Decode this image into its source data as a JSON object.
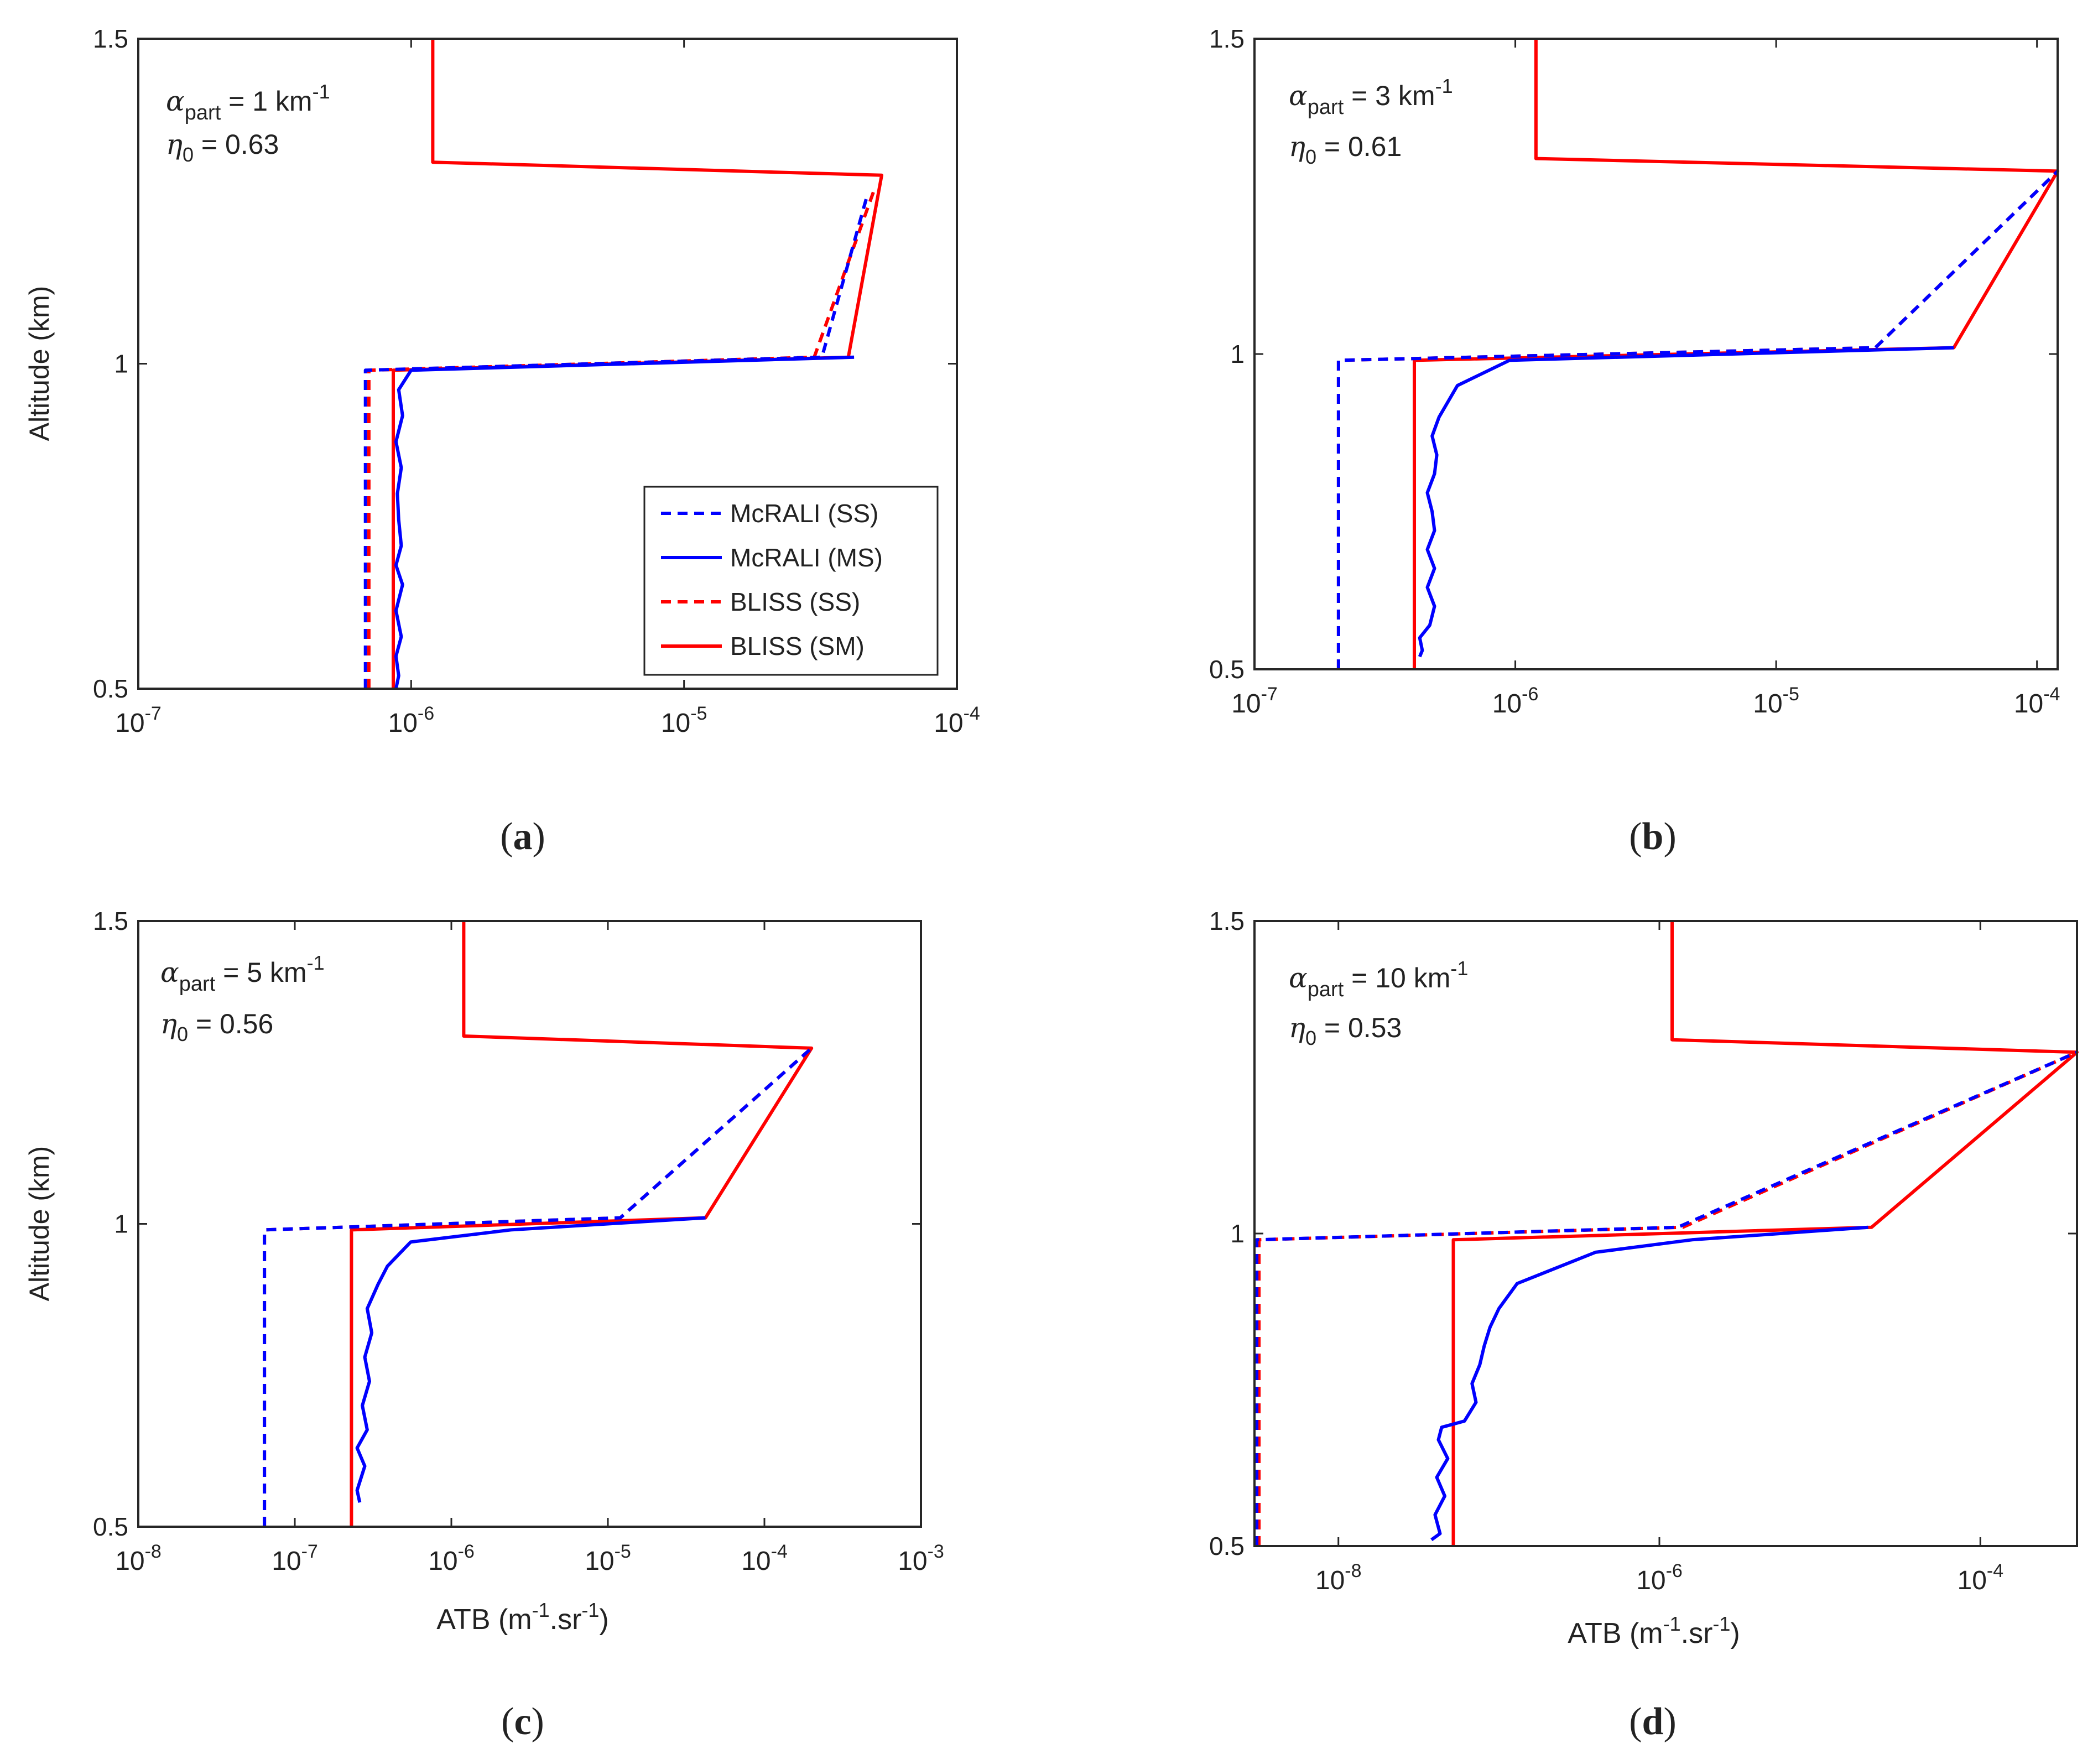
{
  "colors": {
    "mcrali": "#0000ff",
    "bliss": "#ff0000",
    "axis": "#262626"
  },
  "legend": {
    "entries": [
      {
        "label": "McRALI (SS)",
        "style": "dashed",
        "color": "#0000ff"
      },
      {
        "label": "McRALI (MS)",
        "style": "solid",
        "color": "#0000ff"
      },
      {
        "label": "BLISS (SS)",
        "style": "dashed",
        "color": "#ff0000"
      },
      {
        "label": "BLISS (SM)",
        "style": "solid",
        "color": "#ff0000"
      }
    ]
  },
  "chart_data": [
    {
      "id": "a",
      "type": "line",
      "panel_label": "a",
      "ylabel": "Altitude (km)",
      "xlabel": "",
      "xscale": "log",
      "xlim": [
        1e-07,
        0.0001
      ],
      "ylim": [
        0.5,
        1.5
      ],
      "x_ticks": [
        1e-07,
        1e-06,
        1e-05,
        0.0001
      ],
      "x_tick_mant": [
        "10",
        "10",
        "10",
        "10"
      ],
      "x_tick_exp": [
        "-7",
        "-6",
        "-5",
        "-4"
      ],
      "y_ticks": [
        0.5,
        1,
        1.5
      ],
      "y_tick_labels": [
        "0.5",
        "1",
        "1.5"
      ],
      "annotation": {
        "alpha_value": " = 1 km",
        "alpha_exp": "-1",
        "eta_value": " = 0.63"
      },
      "series": [
        {
          "name": "McRALI (SS)",
          "dashed": true,
          "color": "#0000ff",
          "x": [
            6.8e-07,
            6.8e-07,
            3.2e-05,
            4.7e-05
          ],
          "y": [
            0.5,
            0.99,
            1.01,
            1.26
          ]
        },
        {
          "name": "McRALI (MS)",
          "dashed": false,
          "color": "#0000ff",
          "x": [
            8.8e-07,
            9e-07,
            8.8e-07,
            9.2e-07,
            8.8e-07,
            9.3e-07,
            8.8e-07,
            9.2e-07,
            9e-07,
            8.9e-07,
            9.2e-07,
            8.8e-07,
            9.3e-07,
            9e-07,
            1e-06,
            4.2e-05
          ],
          "y": [
            0.5,
            0.52,
            0.55,
            0.58,
            0.62,
            0.66,
            0.69,
            0.72,
            0.76,
            0.8,
            0.84,
            0.88,
            0.92,
            0.96,
            0.99,
            1.01
          ]
        },
        {
          "name": "BLISS (SS)",
          "dashed": true,
          "color": "#ff0000",
          "x": [
            7e-07,
            7e-07,
            3e-05,
            5e-05
          ],
          "y": [
            0.5,
            0.99,
            1.01,
            1.27
          ]
        },
        {
          "name": "BLISS (SM)",
          "dashed": false,
          "color": "#ff0000",
          "x": [
            8.6e-07,
            8.6e-07,
            4e-05,
            5.3e-05,
            1.2e-06,
            1.2e-06
          ],
          "y": [
            0.5,
            0.99,
            1.01,
            1.29,
            1.31,
            1.5
          ]
        }
      ]
    },
    {
      "id": "b",
      "type": "line",
      "panel_label": "b",
      "ylabel": "",
      "xlabel": "",
      "xscale": "log",
      "xlim": [
        1e-07,
        0.00012
      ],
      "ylim": [
        0.5,
        1.5
      ],
      "x_ticks": [
        1e-07,
        1e-06,
        1e-05,
        0.0001
      ],
      "x_tick_mant": [
        "10",
        "10",
        "10",
        "10"
      ],
      "x_tick_exp": [
        "-7",
        "-6",
        "-5",
        "-4"
      ],
      "y_ticks": [
        0.5,
        1,
        1.5
      ],
      "y_tick_labels": [
        "0.5",
        "1",
        "1.5"
      ],
      "annotation": {
        "alpha_value": " = 3 km",
        "alpha_exp": "-1",
        "eta_value": " = 0.61"
      },
      "series": [
        {
          "name": "McRALI (SS)",
          "dashed": true,
          "color": "#0000ff",
          "x": [
            2.1e-07,
            2.1e-07,
            2.4e-05,
            0.00012
          ],
          "y": [
            0.5,
            0.99,
            1.01,
            1.29
          ]
        },
        {
          "name": "McRALI (MS)",
          "dashed": false,
          "color": "#0000ff",
          "x": [
            4.3e-07,
            4.4e-07,
            4.3e-07,
            4.7e-07,
            4.9e-07,
            4.6e-07,
            4.9e-07,
            4.6e-07,
            4.9e-07,
            4.8e-07,
            4.6e-07,
            4.9e-07,
            5e-07,
            4.8e-07,
            5.1e-07,
            6e-07,
            9.5e-07,
            4.8e-05
          ],
          "y": [
            0.52,
            0.53,
            0.55,
            0.57,
            0.6,
            0.63,
            0.66,
            0.69,
            0.72,
            0.75,
            0.78,
            0.81,
            0.84,
            0.87,
            0.9,
            0.95,
            0.99,
            1.01
          ]
        },
        {
          "name": "BLISS (SS)",
          "dashed": true,
          "color": "#ff0000",
          "x": [
            2.1e-07,
            2.1e-07,
            2.4e-05,
            0.00012
          ],
          "y": [
            0.5,
            0.99,
            1.01,
            1.29
          ]
        },
        {
          "name": "BLISS (SM)",
          "dashed": false,
          "color": "#ff0000",
          "x": [
            4.1e-07,
            4.1e-07,
            4.8e-05,
            0.00012,
            1.2e-06,
            1.2e-06
          ],
          "y": [
            0.5,
            0.99,
            1.01,
            1.29,
            1.31,
            1.5
          ]
        }
      ]
    },
    {
      "id": "c",
      "type": "line",
      "panel_label": "c",
      "ylabel": "Altitude (km)",
      "xlabel": "ATB (m-1.sr-1)",
      "xlabel_parts": [
        "ATB (m",
        "-1",
        ".sr",
        "-1",
        ")"
      ],
      "xscale": "log",
      "xlim": [
        1e-08,
        0.001
      ],
      "ylim": [
        0.5,
        1.5
      ],
      "x_ticks": [
        1e-08,
        1e-07,
        1e-06,
        1e-05,
        0.0001,
        0.001
      ],
      "x_tick_mant": [
        "10",
        "10",
        "10",
        "10",
        "10",
        "10"
      ],
      "x_tick_exp": [
        "-8",
        "-7",
        "-6",
        "-5",
        "-4",
        "-3"
      ],
      "y_ticks": [
        0.5,
        1,
        1.5
      ],
      "y_tick_labels": [
        "0.5",
        "1",
        "1.5"
      ],
      "annotation": {
        "alpha_value": " = 5 km",
        "alpha_exp": "-1",
        "eta_value": " = 0.56"
      },
      "series": [
        {
          "name": "McRALI (SS)",
          "dashed": true,
          "color": "#0000ff",
          "x": [
            6.4e-08,
            6.4e-08,
            1.2e-05,
            0.0002
          ],
          "y": [
            0.5,
            0.99,
            1.01,
            1.29
          ]
        },
        {
          "name": "McRALI (MS)",
          "dashed": false,
          "color": "#0000ff",
          "x": [
            2.6e-07,
            2.5e-07,
            2.8e-07,
            2.5e-07,
            2.9e-07,
            2.7e-07,
            3e-07,
            2.8e-07,
            3.1e-07,
            2.9e-07,
            3.4e-07,
            3.9e-07,
            5.5e-07,
            2.4e-06,
            4.2e-05
          ],
          "y": [
            0.54,
            0.56,
            0.6,
            0.63,
            0.66,
            0.7,
            0.74,
            0.78,
            0.82,
            0.86,
            0.9,
            0.93,
            0.97,
            0.99,
            1.01
          ]
        },
        {
          "name": "BLISS (SS)",
          "dashed": true,
          "color": "#ff0000",
          "x": [
            6.4e-08,
            6.4e-08,
            1.2e-05,
            0.0002
          ],
          "y": [
            0.5,
            0.99,
            1.01,
            1.29
          ]
        },
        {
          "name": "BLISS (SM)",
          "dashed": false,
          "color": "#ff0000",
          "x": [
            2.3e-07,
            2.3e-07,
            4.2e-05,
            0.0002,
            1.2e-06,
            1.2e-06
          ],
          "y": [
            0.5,
            0.99,
            1.01,
            1.29,
            1.31,
            1.5
          ]
        }
      ]
    },
    {
      "id": "d",
      "type": "line",
      "panel_label": "d",
      "ylabel": "",
      "xlabel": "ATB (m-1.sr-1)",
      "xlabel_parts": [
        "ATB (m",
        "-1",
        ".sr",
        "-1",
        ")"
      ],
      "xscale": "log",
      "xlim": [
        3e-09,
        0.0004
      ],
      "ylim": [
        0.5,
        1.5
      ],
      "x_ticks": [
        1e-08,
        1e-06,
        0.0001
      ],
      "x_tick_mant": [
        "10",
        "10",
        "10"
      ],
      "x_tick_exp": [
        "-8",
        "-6",
        "-4"
      ],
      "y_ticks": [
        0.5,
        1,
        1.5
      ],
      "y_tick_labels": [
        "0.5",
        "1",
        "1.5"
      ],
      "annotation": {
        "alpha_value": " = 10 km",
        "alpha_exp": "-1",
        "eta_value": " = 0.53"
      },
      "series": [
        {
          "name": "McRALI (SS)",
          "dashed": true,
          "color": "#0000ff",
          "x": [
            3.1e-09,
            3.1e-09,
            1.3e-06,
            0.0004
          ],
          "y": [
            0.5,
            0.99,
            1.01,
            1.29
          ]
        },
        {
          "name": "McRALI (MS)",
          "dashed": false,
          "color": "#0000ff",
          "x": [
            3.8e-08,
            4.3e-08,
            4e-08,
            4.6e-08,
            4.1e-08,
            4.8e-08,
            4.2e-08,
            4.4e-08,
            6.1e-08,
            7.2e-08,
            6.8e-08,
            7.6e-08,
            8.1e-08,
            8.8e-08,
            1e-07,
            1.3e-07,
            4e-07,
            1.6e-06,
            2e-05
          ],
          "y": [
            0.51,
            0.52,
            0.55,
            0.58,
            0.61,
            0.64,
            0.67,
            0.69,
            0.7,
            0.73,
            0.76,
            0.79,
            0.82,
            0.85,
            0.88,
            0.92,
            0.97,
            0.99,
            1.01
          ]
        },
        {
          "name": "BLISS (SS)",
          "dashed": true,
          "color": "#ff0000",
          "x": [
            3.2e-09,
            3.2e-09,
            1.4e-06,
            0.0004
          ],
          "y": [
            0.5,
            0.99,
            1.01,
            1.29
          ]
        },
        {
          "name": "BLISS (SM)",
          "dashed": false,
          "color": "#ff0000",
          "x": [
            5.2e-08,
            5.2e-08,
            2.1e-05,
            0.0004,
            1.2e-06,
            1.2e-06
          ],
          "y": [
            0.5,
            0.99,
            1.01,
            1.29,
            1.31,
            1.5
          ]
        }
      ]
    }
  ]
}
